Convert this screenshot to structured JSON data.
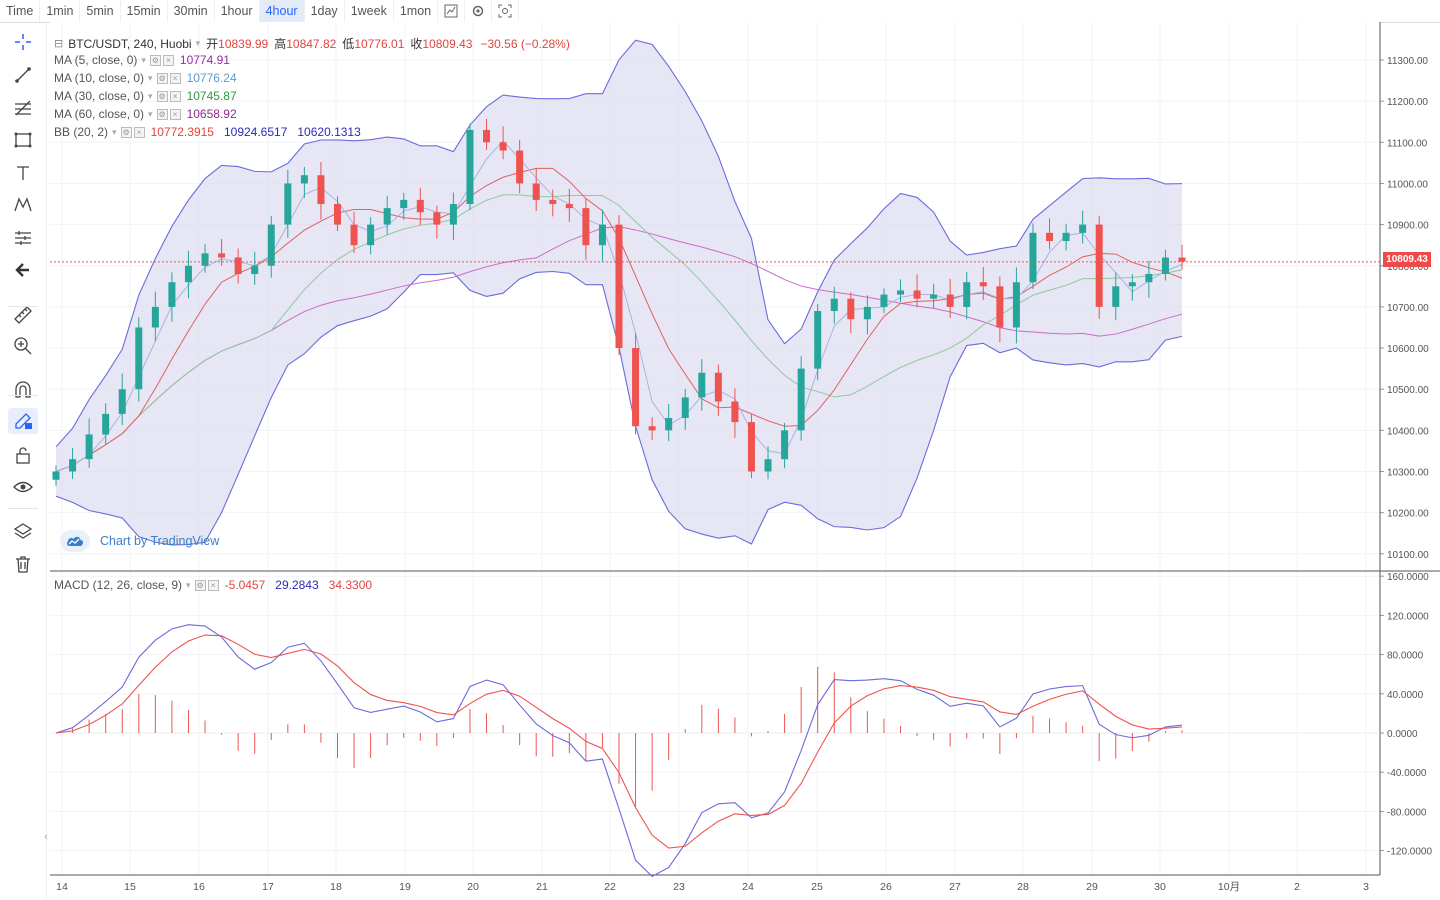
{
  "toolbar": {
    "timeframes": [
      "Time",
      "1min",
      "5min",
      "15min",
      "30min",
      "1hour",
      "4hour",
      "1day",
      "1week",
      "1mon"
    ],
    "active": "4hour",
    "icons": [
      "chart-type-icon",
      "settings-icon",
      "screenshot-icon"
    ]
  },
  "left_tools": [
    "crosshair-icon",
    "trend-line-icon",
    "fib-icon",
    "rectangle-icon",
    "text-icon",
    "pattern-icon",
    "prediction-icon",
    "back-arrow-icon",
    "ruler-icon",
    "zoom-icon",
    "magnet-icon",
    "lock-drawing-icon",
    "lock-icon",
    "eye-icon",
    "layers-icon",
    "trash-icon"
  ],
  "symbol": {
    "name": "BTC/USDT, 240, Huobi",
    "open_label": "开",
    "open": "10839.99",
    "high_label": "高",
    "high": "10847.82",
    "low_label": "低",
    "low": "10776.01",
    "close_label": "收",
    "close": "10809.43",
    "change": "−30.56 (−0.28%)"
  },
  "indicators": [
    {
      "name": "MA (5, close, 0)",
      "value": "10774.91",
      "color": "#9c27b0"
    },
    {
      "name": "MA (10, close, 0)",
      "value": "10776.24",
      "color": "#5b9bd5"
    },
    {
      "name": "MA (30, close, 0)",
      "value": "10745.87",
      "color": "#2e9a3e"
    },
    {
      "name": "MA (60, close, 0)",
      "value": "10658.92",
      "color": "#8e2a8e"
    }
  ],
  "bb": {
    "name": "BB (20, 2)",
    "basis": "10772.3915",
    "upper": "10924.6517",
    "lower": "10620.1313"
  },
  "macd": {
    "name": "MACD (12, 26, close, 9)",
    "hist": "-5.0457",
    "macd": "29.2843",
    "signal": "34.3300"
  },
  "watermark": "Chart by TradingView",
  "last_price": "10809.43",
  "colors": {
    "up": "#26a69a",
    "down": "#ef5350",
    "bb_fill": "#d8d8ef",
    "bb_line": "#6b6bdc"
  },
  "chart_data": {
    "type": "candlestick",
    "price_axis": [
      "11300.00",
      "11200.00",
      "11100.00",
      "11000.00",
      "10900.00",
      "10800.00",
      "10700.00",
      "10600.00",
      "10500.00",
      "10400.00",
      "10300.00",
      "10200.00",
      "10100.00"
    ],
    "macd_axis": [
      "160.0000",
      "120.0000",
      "80.0000",
      "40.0000",
      "0.0000",
      "-40.0000",
      "-80.0000",
      "-120.0000"
    ],
    "x_labels": [
      "14",
      "15",
      "16",
      "17",
      "18",
      "19",
      "20",
      "21",
      "22",
      "23",
      "24",
      "25",
      "26",
      "27",
      "28",
      "29",
      "30",
      "10月",
      "2",
      "3"
    ],
    "close_path": [
      10300,
      10330,
      10390,
      10440,
      10500,
      10650,
      10700,
      10760,
      10800,
      10830,
      10820,
      10780,
      10800,
      10900,
      11000,
      11020,
      10950,
      10900,
      10850,
      10900,
      10940,
      10960,
      10930,
      10900,
      10950,
      11130,
      11100,
      11080,
      11000,
      10960,
      10950,
      10940,
      10850,
      10900,
      10600,
      10410,
      10400,
      10430,
      10480,
      10540,
      10470,
      10420,
      10300,
      10330,
      10400,
      10550,
      10690,
      10720,
      10670,
      10700,
      10730,
      10740,
      10720,
      10730,
      10700,
      10760,
      10750,
      10650,
      10760,
      10880,
      10860,
      10880,
      10900,
      10700,
      10750,
      10760,
      10780,
      10820,
      10810
    ]
  }
}
